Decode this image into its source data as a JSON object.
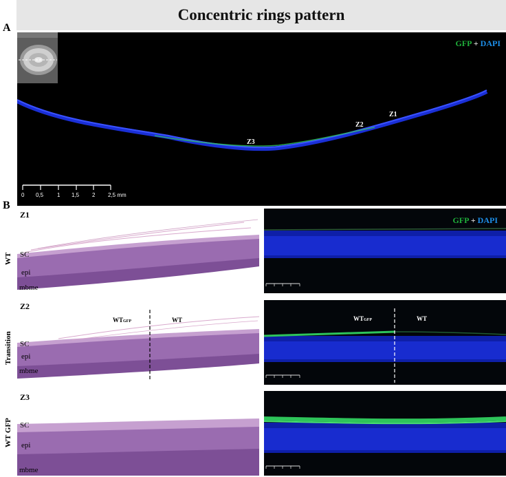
{
  "figure": {
    "title": "Concentric rings pattern",
    "panel_a": {
      "letter": "A",
      "legend": {
        "gfp": "GFP",
        "plus": "+",
        "dapi": "DAPI"
      },
      "zones": [
        "Z1",
        "Z2",
        "Z3"
      ],
      "scale_ticks": [
        "0",
        "0,5",
        "1",
        "1,5",
        "2",
        "2,5 mm"
      ]
    },
    "panel_b": {
      "letter": "B",
      "legend": {
        "gfp": "GFP",
        "plus": "+",
        "dapi": "DAPI"
      },
      "rows": [
        {
          "row_label": "WT",
          "zone": "Z1",
          "layers": [
            "SC",
            "epi",
            "mbme"
          ],
          "regions": []
        },
        {
          "row_label": "Transition",
          "zone": "Z2",
          "layers": [
            "SC",
            "epi",
            "mbme"
          ],
          "regions": [
            {
              "main": "WT",
              "sub": "GFP"
            },
            {
              "main": "WT",
              "sub": ""
            }
          ]
        },
        {
          "row_label": "WT GFP",
          "zone": "Z3",
          "layers": [
            "SC",
            "epi",
            "mbme"
          ],
          "regions": []
        }
      ]
    },
    "colors": {
      "gfp": "#1fae3a",
      "dapi": "#1d8ee8",
      "he_pink": "#e3b8d6",
      "he_purple": "#8f5fa6",
      "nuclei_blue": "#1a2fd6"
    }
  }
}
